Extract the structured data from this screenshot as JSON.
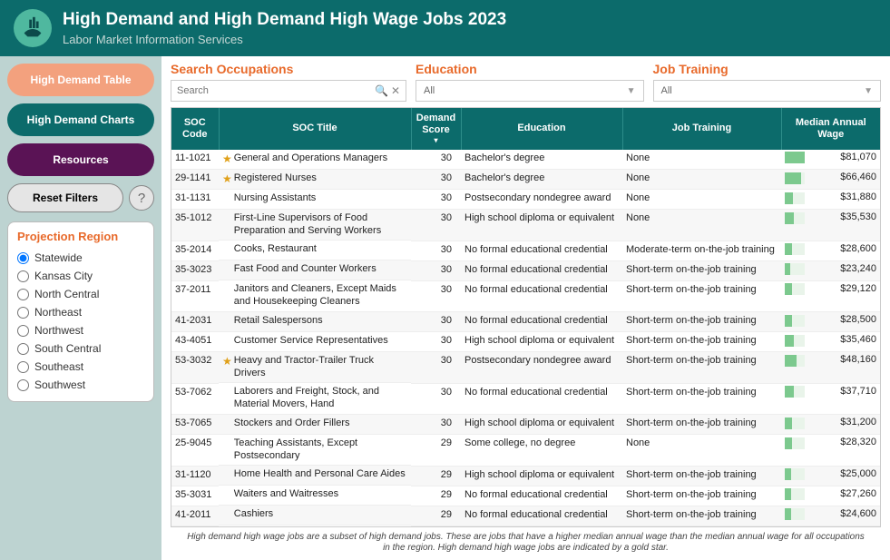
{
  "header": {
    "title": "High Demand and High Demand High Wage Jobs 2023",
    "subtitle": "Labor Market Information Services"
  },
  "sidebar": {
    "nav": [
      {
        "label": "High Demand Table",
        "style": "orange"
      },
      {
        "label": "High Demand Charts",
        "style": "teal"
      },
      {
        "label": "Resources",
        "style": "purple"
      }
    ],
    "reset_label": "Reset Filters",
    "help_label": "?",
    "region_heading": "Projection Region",
    "regions": [
      {
        "label": "Statewide",
        "selected": true
      },
      {
        "label": "Kansas City",
        "selected": false
      },
      {
        "label": "North Central",
        "selected": false
      },
      {
        "label": "Northeast",
        "selected": false
      },
      {
        "label": "Northwest",
        "selected": false
      },
      {
        "label": "South Central",
        "selected": false
      },
      {
        "label": "Southeast",
        "selected": false
      },
      {
        "label": "Southwest",
        "selected": false
      }
    ]
  },
  "filters": {
    "search": {
      "heading": "Search Occupations",
      "placeholder": "Search"
    },
    "education": {
      "heading": "Education",
      "value": "All"
    },
    "training": {
      "heading": "Job Training",
      "value": "All"
    }
  },
  "table": {
    "columns": {
      "soc": "SOC Code",
      "title": "SOC Title",
      "score": "Demand Score",
      "education": "Education",
      "training": "Job Training",
      "wage": "Median Annual Wage"
    },
    "wage_max": 81070,
    "rows": [
      {
        "soc": "11-1021",
        "star": true,
        "title": "General and Operations Managers",
        "score": 30,
        "education": "Bachelor's degree",
        "training": "None",
        "wage": "$81,070",
        "wage_val": 81070
      },
      {
        "soc": "29-1141",
        "star": true,
        "title": "Registered Nurses",
        "score": 30,
        "education": "Bachelor's degree",
        "training": "None",
        "wage": "$66,460",
        "wage_val": 66460
      },
      {
        "soc": "31-1131",
        "star": false,
        "title": "Nursing Assistants",
        "score": 30,
        "education": "Postsecondary nondegree award",
        "training": "None",
        "wage": "$31,880",
        "wage_val": 31880
      },
      {
        "soc": "35-1012",
        "star": false,
        "title": "First-Line Supervisors of Food Preparation and Serving Workers",
        "score": 30,
        "education": "High school diploma or equivalent",
        "training": "None",
        "wage": "$35,530",
        "wage_val": 35530
      },
      {
        "soc": "35-2014",
        "star": false,
        "title": "Cooks, Restaurant",
        "score": 30,
        "education": "No formal educational credential",
        "training": "Moderate-term on-the-job training",
        "wage": "$28,600",
        "wage_val": 28600
      },
      {
        "soc": "35-3023",
        "star": false,
        "title": "Fast Food and Counter Workers",
        "score": 30,
        "education": "No formal educational credential",
        "training": "Short-term on-the-job training",
        "wage": "$23,240",
        "wage_val": 23240
      },
      {
        "soc": "37-2011",
        "star": false,
        "title": "Janitors and Cleaners, Except Maids and Housekeeping Cleaners",
        "score": 30,
        "education": "No formal educational credential",
        "training": "Short-term on-the-job training",
        "wage": "$29,120",
        "wage_val": 29120
      },
      {
        "soc": "41-2031",
        "star": false,
        "title": "Retail Salespersons",
        "score": 30,
        "education": "No formal educational credential",
        "training": "Short-term on-the-job training",
        "wage": "$28,500",
        "wage_val": 28500
      },
      {
        "soc": "43-4051",
        "star": false,
        "title": "Customer Service Representatives",
        "score": 30,
        "education": "High school diploma or equivalent",
        "training": "Short-term on-the-job training",
        "wage": "$35,460",
        "wage_val": 35460
      },
      {
        "soc": "53-3032",
        "star": true,
        "title": "Heavy and Tractor-Trailer Truck Drivers",
        "score": 30,
        "education": "Postsecondary nondegree award",
        "training": "Short-term on-the-job training",
        "wage": "$48,160",
        "wage_val": 48160
      },
      {
        "soc": "53-7062",
        "star": false,
        "title": "Laborers and Freight, Stock, and Material Movers, Hand",
        "score": 30,
        "education": "No formal educational credential",
        "training": "Short-term on-the-job training",
        "wage": "$37,710",
        "wage_val": 37710
      },
      {
        "soc": "53-7065",
        "star": false,
        "title": "Stockers and Order Fillers",
        "score": 30,
        "education": "High school diploma or equivalent",
        "training": "Short-term on-the-job training",
        "wage": "$31,200",
        "wage_val": 31200
      },
      {
        "soc": "25-9045",
        "star": false,
        "title": "Teaching Assistants, Except Postsecondary",
        "score": 29,
        "education": "Some college, no degree",
        "training": "None",
        "wage": "$28,320",
        "wage_val": 28320
      },
      {
        "soc": "31-1120",
        "star": false,
        "title": "Home Health and Personal Care Aides",
        "score": 29,
        "education": "High school diploma or equivalent",
        "training": "Short-term on-the-job training",
        "wage": "$25,000",
        "wage_val": 25000
      },
      {
        "soc": "35-3031",
        "star": false,
        "title": "Waiters and Waitresses",
        "score": 29,
        "education": "No formal educational credential",
        "training": "Short-term on-the-job training",
        "wage": "$27,260",
        "wage_val": 27260
      },
      {
        "soc": "41-2011",
        "star": false,
        "title": "Cashiers",
        "score": 29,
        "education": "No formal educational credential",
        "training": "Short-term on-the-job training",
        "wage": "$24,600",
        "wage_val": 24600
      }
    ]
  },
  "footnote": "High demand high wage jobs are a subset of high demand jobs. These are jobs that have a higher median annual wage than the median annual wage for all occupations in the region. High demand high wage jobs are indicated by a gold star.",
  "colors": {
    "header_bg": "#0c6b6b",
    "sidebar_bg": "#bdd3d1",
    "accent_orange": "#e86a2b",
    "nav_orange": "#f3a17e",
    "nav_teal": "#0c6b6b",
    "nav_purple": "#5a1355",
    "star": "#e0a018",
    "wage_bar": "#7cc98e"
  }
}
